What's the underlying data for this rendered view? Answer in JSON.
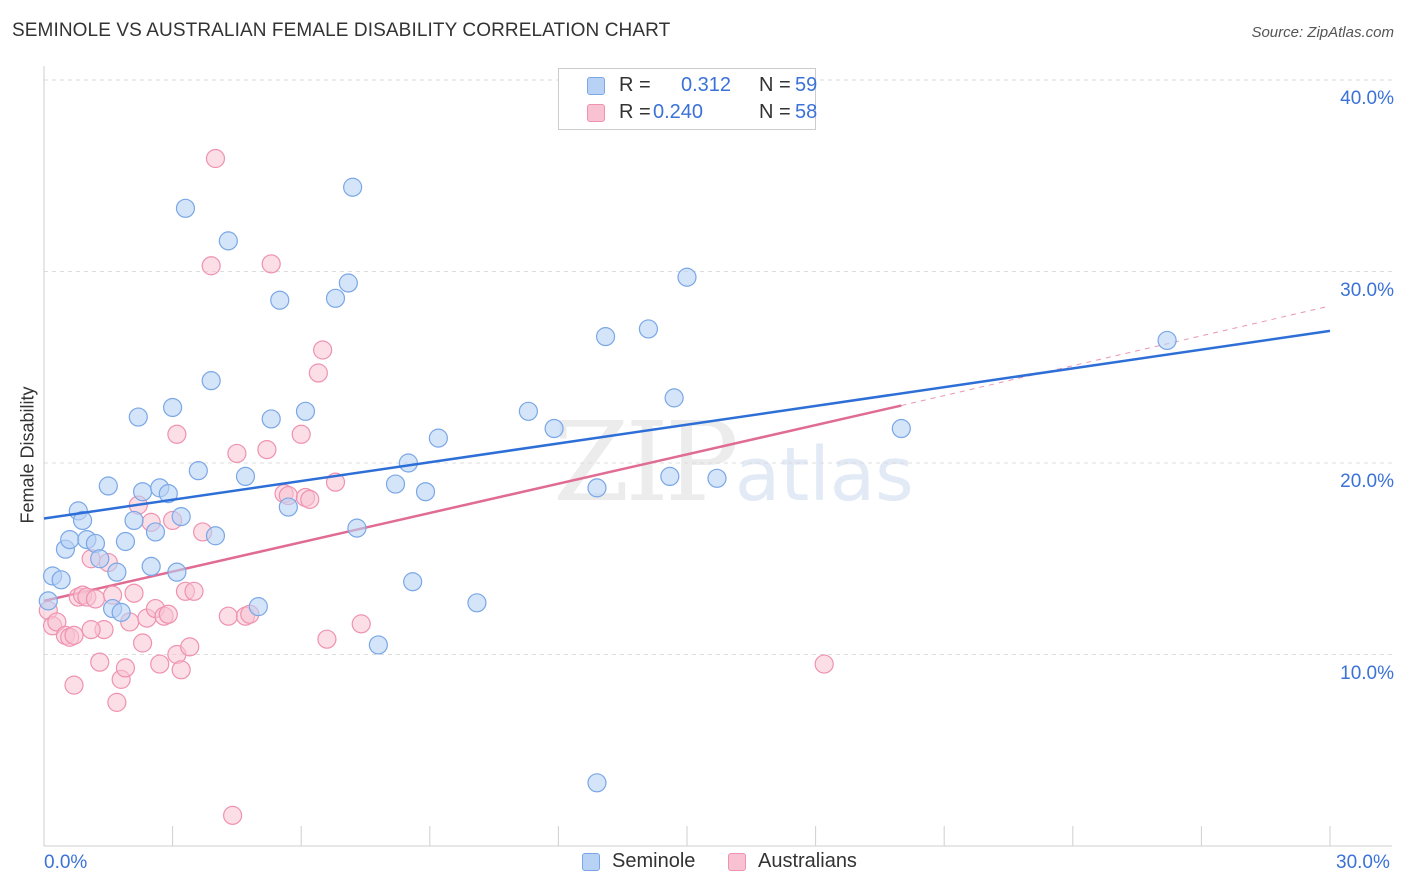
{
  "header": {
    "title": "SEMINOLE VS AUSTRALIAN FEMALE DISABILITY CORRELATION CHART",
    "source": "Source: ZipAtlas.com"
  },
  "watermark": {
    "zip": "ZIP",
    "atlas": "atlas"
  },
  "legend": {
    "rows": [
      {
        "r_label": "R =",
        "r_value": "0.312",
        "n_label": "N =",
        "n_value": "59"
      },
      {
        "r_label": "R =",
        "r_value": "0.240",
        "n_label": "N =",
        "n_value": "58"
      }
    ]
  },
  "bottom_legend": {
    "series1": "Seminole",
    "series2": "Australians"
  },
  "colors": {
    "seminole_fill": "#b8d2f5",
    "seminole_stroke": "#7aa7e6",
    "seminole_line": "#2d6fd6",
    "australians_fill": "#f8c2d2",
    "australians_stroke": "#ef92b0",
    "australians_line": "#e06b93",
    "tick_text": "#3a72d8"
  },
  "chart_data": {
    "type": "scatter",
    "title": "SEMINOLE VS AUSTRALIAN FEMALE DISABILITY CORRELATION CHART",
    "xlabel": "",
    "ylabel": "Female Disability",
    "xlim": [
      0,
      30
    ],
    "ylim": [
      0,
      40
    ],
    "x_tick_labels": [
      "0.0%",
      "30.0%"
    ],
    "y_ticks": [
      10,
      20,
      30,
      40
    ],
    "y_tick_labels": [
      "10.0%",
      "20.0%",
      "30.0%",
      "40.0%"
    ],
    "grid": true,
    "legend_position": "top-center",
    "series": [
      {
        "name": "Seminole",
        "r": 0.312,
        "n": 59,
        "trend": {
          "x": [
            0,
            30
          ],
          "y": [
            17.1,
            26.9
          ]
        },
        "points": [
          [
            0.1,
            12.8
          ],
          [
            0.2,
            14.1
          ],
          [
            0.4,
            13.9
          ],
          [
            0.5,
            15.5
          ],
          [
            0.6,
            16.0
          ],
          [
            0.8,
            17.5
          ],
          [
            0.9,
            17.0
          ],
          [
            1.0,
            16.0
          ],
          [
            1.2,
            15.8
          ],
          [
            1.3,
            15.0
          ],
          [
            1.5,
            18.8
          ],
          [
            1.6,
            12.4
          ],
          [
            1.7,
            14.3
          ],
          [
            1.8,
            12.2
          ],
          [
            1.9,
            15.9
          ],
          [
            2.1,
            17.0
          ],
          [
            2.2,
            22.4
          ],
          [
            2.3,
            18.5
          ],
          [
            2.5,
            14.6
          ],
          [
            2.6,
            16.4
          ],
          [
            2.7,
            18.7
          ],
          [
            2.9,
            18.4
          ],
          [
            3.0,
            22.9
          ],
          [
            3.1,
            14.3
          ],
          [
            3.2,
            17.2
          ],
          [
            3.3,
            33.3
          ],
          [
            3.6,
            19.6
          ],
          [
            3.9,
            24.3
          ],
          [
            4.0,
            16.2
          ],
          [
            4.3,
            31.6
          ],
          [
            4.7,
            19.3
          ],
          [
            5.0,
            12.5
          ],
          [
            5.3,
            22.3
          ],
          [
            5.5,
            28.5
          ],
          [
            5.7,
            17.7
          ],
          [
            6.1,
            22.7
          ],
          [
            6.8,
            28.6
          ],
          [
            7.1,
            29.4
          ],
          [
            7.2,
            34.4
          ],
          [
            7.3,
            16.6
          ],
          [
            8.2,
            18.9
          ],
          [
            8.5,
            20.0
          ],
          [
            8.6,
            13.8
          ],
          [
            8.9,
            18.5
          ],
          [
            9.2,
            21.3
          ],
          [
            10.1,
            12.7
          ],
          [
            11.3,
            22.7
          ],
          [
            11.9,
            21.8
          ],
          [
            12.9,
            18.7
          ],
          [
            12.9,
            3.3
          ],
          [
            13.1,
            26.6
          ],
          [
            14.1,
            27.0
          ],
          [
            14.6,
            19.3
          ],
          [
            14.7,
            23.4
          ],
          [
            15.0,
            29.7
          ],
          [
            15.7,
            19.2
          ],
          [
            20.0,
            21.8
          ],
          [
            26.2,
            26.4
          ],
          [
            7.8,
            10.5
          ]
        ]
      },
      {
        "name": "Australians",
        "r": 0.24,
        "n": 58,
        "trend": {
          "x": [
            0,
            20
          ],
          "y": [
            12.8,
            23.0
          ]
        },
        "trend_extension": {
          "x": [
            20,
            30
          ],
          "y": [
            23.0,
            28.2
          ]
        },
        "points": [
          [
            0.1,
            12.3
          ],
          [
            0.2,
            11.5
          ],
          [
            0.3,
            11.7
          ],
          [
            0.5,
            11.0
          ],
          [
            0.6,
            10.9
          ],
          [
            0.7,
            11.0
          ],
          [
            0.7,
            8.4
          ],
          [
            0.8,
            13.0
          ],
          [
            0.9,
            13.1
          ],
          [
            1.0,
            13.0
          ],
          [
            1.1,
            15.0
          ],
          [
            1.2,
            12.9
          ],
          [
            1.3,
            9.6
          ],
          [
            1.4,
            11.3
          ],
          [
            1.5,
            14.8
          ],
          [
            1.6,
            13.1
          ],
          [
            1.7,
            7.5
          ],
          [
            1.8,
            8.7
          ],
          [
            1.9,
            9.3
          ],
          [
            2.0,
            11.7
          ],
          [
            2.1,
            13.2
          ],
          [
            2.2,
            17.8
          ],
          [
            2.3,
            10.6
          ],
          [
            2.4,
            11.9
          ],
          [
            2.5,
            16.9
          ],
          [
            2.6,
            12.4
          ],
          [
            2.7,
            9.5
          ],
          [
            2.8,
            12.0
          ],
          [
            2.9,
            12.1
          ],
          [
            3.0,
            17.0
          ],
          [
            3.1,
            21.5
          ],
          [
            3.1,
            10.0
          ],
          [
            3.2,
            9.2
          ],
          [
            3.3,
            13.3
          ],
          [
            3.4,
            10.4
          ],
          [
            3.5,
            13.3
          ],
          [
            3.7,
            16.4
          ],
          [
            3.9,
            30.3
          ],
          [
            4.0,
            35.9
          ],
          [
            4.3,
            12.0
          ],
          [
            4.4,
            1.6
          ],
          [
            4.5,
            20.5
          ],
          [
            4.7,
            12.0
          ],
          [
            4.8,
            12.1
          ],
          [
            5.2,
            20.7
          ],
          [
            5.3,
            30.4
          ],
          [
            5.6,
            18.4
          ],
          [
            5.7,
            18.3
          ],
          [
            6.0,
            21.5
          ],
          [
            6.1,
            18.2
          ],
          [
            6.2,
            18.1
          ],
          [
            6.4,
            24.7
          ],
          [
            6.5,
            25.9
          ],
          [
            6.6,
            10.8
          ],
          [
            6.8,
            19.0
          ],
          [
            7.4,
            11.6
          ],
          [
            18.2,
            9.5
          ],
          [
            1.1,
            11.3
          ]
        ]
      }
    ]
  }
}
